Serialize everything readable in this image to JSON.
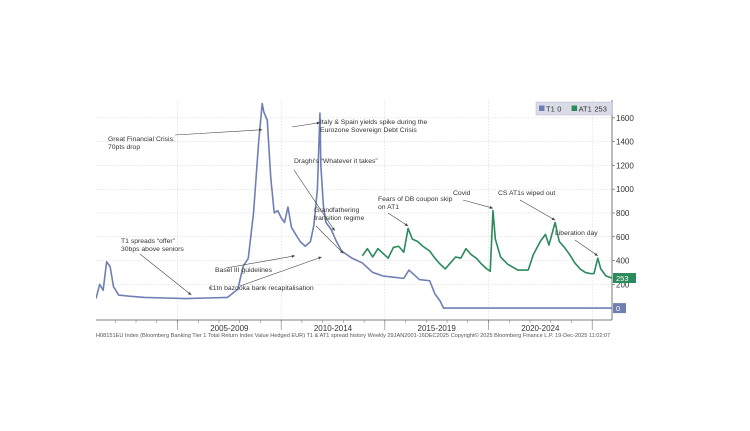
{
  "chart_data": {
    "type": "line",
    "title": "",
    "xlabel": "",
    "ylabel": "",
    "x_ticks": [
      "2005-2009",
      "2010-2014",
      "2015-2019",
      "2020-2024"
    ],
    "xlim": [
      "2001-01-26",
      "2025-12-16"
    ],
    "ylim": [
      -100,
      1750
    ],
    "y_ticks": [
      200,
      400,
      600,
      800,
      1000,
      1200,
      1400,
      1600
    ],
    "grid": true,
    "legend_position": "top-right",
    "legend": [
      {
        "name": "T1",
        "value": "0",
        "color": "#6f7fb4"
      },
      {
        "name": "AT1",
        "value": "253",
        "color": "#2a8a5c"
      }
    ],
    "last_value_labels": [
      {
        "series": "AT1",
        "text": "253",
        "y": 253,
        "color": "#2a8a5c"
      },
      {
        "series": "T1",
        "text": "0",
        "y": 0,
        "color": "#6f7fb4"
      }
    ],
    "series": [
      {
        "name": "T1",
        "color": "#6f7fb4",
        "points": [
          [
            "2001-01-26",
            80
          ],
          [
            "2001-04-01",
            200
          ],
          [
            "2001-06-01",
            150
          ],
          [
            "2001-08-01",
            390
          ],
          [
            "2001-10-01",
            350
          ],
          [
            "2001-12-01",
            180
          ],
          [
            "2002-03-01",
            110
          ],
          [
            "2002-09-01",
            100
          ],
          [
            "2003-06-01",
            90
          ],
          [
            "2004-06-01",
            85
          ],
          [
            "2005-06-01",
            80
          ],
          [
            "2006-06-01",
            85
          ],
          [
            "2007-06-01",
            90
          ],
          [
            "2007-12-01",
            160
          ],
          [
            "2008-03-01",
            350
          ],
          [
            "2008-06-01",
            420
          ],
          [
            "2008-09-01",
            800
          ],
          [
            "2008-12-01",
            1400
          ],
          [
            "2009-02-01",
            1720
          ],
          [
            "2009-03-01",
            1650
          ],
          [
            "2009-05-01",
            1580
          ],
          [
            "2009-07-01",
            1100
          ],
          [
            "2009-09-01",
            800
          ],
          [
            "2009-11-01",
            820
          ],
          [
            "2010-01-01",
            760
          ],
          [
            "2010-03-01",
            720
          ],
          [
            "2010-05-01",
            850
          ],
          [
            "2010-07-01",
            680
          ],
          [
            "2010-09-01",
            630
          ],
          [
            "2010-12-01",
            560
          ],
          [
            "2011-03-01",
            520
          ],
          [
            "2011-06-01",
            560
          ],
          [
            "2011-08-01",
            700
          ],
          [
            "2011-10-01",
            1000
          ],
          [
            "2011-11-15",
            1640
          ],
          [
            "2011-12-01",
            1200
          ],
          [
            "2012-01-15",
            860
          ],
          [
            "2012-03-01",
            720
          ],
          [
            "2012-06-01",
            660
          ],
          [
            "2012-09-01",
            560
          ],
          [
            "2012-12-01",
            480
          ],
          [
            "2013-06-01",
            420
          ],
          [
            "2013-12-01",
            380
          ],
          [
            "2014-06-01",
            300
          ],
          [
            "2014-12-01",
            270
          ],
          [
            "2015-06-01",
            260
          ],
          [
            "2015-12-01",
            250
          ],
          [
            "2016-03-01",
            320
          ],
          [
            "2016-09-01",
            240
          ],
          [
            "2017-03-01",
            230
          ],
          [
            "2017-06-01",
            120
          ],
          [
            "2017-09-01",
            60
          ],
          [
            "2017-11-01",
            0
          ],
          [
            "2025-12-16",
            0
          ]
        ]
      },
      {
        "name": "AT1",
        "color": "#2a8a5c",
        "points": [
          [
            "2013-12-01",
            440
          ],
          [
            "2014-03-01",
            500
          ],
          [
            "2014-06-01",
            430
          ],
          [
            "2014-09-01",
            500
          ],
          [
            "2014-12-01",
            460
          ],
          [
            "2015-03-01",
            420
          ],
          [
            "2015-06-01",
            510
          ],
          [
            "2015-09-01",
            520
          ],
          [
            "2015-12-01",
            470
          ],
          [
            "2016-02-15",
            670
          ],
          [
            "2016-05-01",
            580
          ],
          [
            "2016-08-01",
            560
          ],
          [
            "2016-11-01",
            520
          ],
          [
            "2017-03-01",
            480
          ],
          [
            "2017-06-01",
            420
          ],
          [
            "2017-09-01",
            370
          ],
          [
            "2017-12-01",
            330
          ],
          [
            "2018-03-01",
            380
          ],
          [
            "2018-06-01",
            430
          ],
          [
            "2018-09-01",
            420
          ],
          [
            "2018-12-01",
            500
          ],
          [
            "2019-03-01",
            450
          ],
          [
            "2019-06-01",
            420
          ],
          [
            "2019-09-01",
            370
          ],
          [
            "2019-12-01",
            330
          ],
          [
            "2020-02-01",
            310
          ],
          [
            "2020-03-20",
            820
          ],
          [
            "2020-05-01",
            580
          ],
          [
            "2020-08-01",
            430
          ],
          [
            "2020-12-01",
            370
          ],
          [
            "2021-06-01",
            320
          ],
          [
            "2021-12-01",
            320
          ],
          [
            "2022-03-01",
            450
          ],
          [
            "2022-07-01",
            560
          ],
          [
            "2022-10-01",
            620
          ],
          [
            "2022-12-01",
            530
          ],
          [
            "2023-03-20",
            720
          ],
          [
            "2023-06-01",
            560
          ],
          [
            "2023-09-01",
            510
          ],
          [
            "2023-12-01",
            450
          ],
          [
            "2024-03-01",
            380
          ],
          [
            "2024-06-01",
            330
          ],
          [
            "2024-09-01",
            300
          ],
          [
            "2024-12-01",
            290
          ],
          [
            "2025-02-01",
            290
          ],
          [
            "2025-04-10",
            420
          ],
          [
            "2025-06-01",
            330
          ],
          [
            "2025-09-01",
            270
          ],
          [
            "2025-12-16",
            253
          ]
        ]
      }
    ],
    "annotations": [
      {
        "text": [
          "Great Financial Crisis:",
          "70pts drop"
        ],
        "target": [
          "2009-02-01",
          1500
        ]
      },
      {
        "text": [
          "T1 spreads “offer”",
          "30bps above seniors"
        ],
        "target": [
          "2005-09-01",
          110
        ]
      },
      {
        "text": [
          "Italy & Spain yields spike during the",
          "Eurozone Sovereign Debt Crisis"
        ],
        "target": [
          "2011-11-15",
          1560
        ]
      },
      {
        "text": [
          "Draghi's “Whatever it takes”"
        ],
        "target": [
          "2012-08-01",
          650
        ]
      },
      {
        "text": [
          "Grandfathering",
          "transition regime"
        ],
        "target": [
          "2013-01-01",
          460
        ]
      },
      {
        "text": [
          "Basel III guidelines"
        ],
        "target": [
          "2010-09-01",
          440
        ]
      },
      {
        "text": [
          "€1tn bazooka bank recapitalisation"
        ],
        "target": [
          "2011-12-15",
          430
        ]
      },
      {
        "text": [
          "Fears of DB coupon skip",
          "on AT1"
        ],
        "target": [
          "2016-02-15",
          690
        ]
      },
      {
        "text": [
          "Covid"
        ],
        "target": [
          "2020-03-20",
          840
        ]
      },
      {
        "text": [
          "CS AT1s wiped out"
        ],
        "target": [
          "2023-03-20",
          740
        ]
      },
      {
        "text": [
          "Liberation day"
        ],
        "target": [
          "2025-04-10",
          440
        ]
      }
    ]
  },
  "footer_text": "H08151EU Index (Bloomberg Banking Tier 1 Total Return Index Value Hedged EUR) T1 & AT1 spread history Weekly 29JAN2001-16DEC2025 Copyright© 2025 Bloomberg Finance L.P.   19-Dec-2025 11:02:07"
}
